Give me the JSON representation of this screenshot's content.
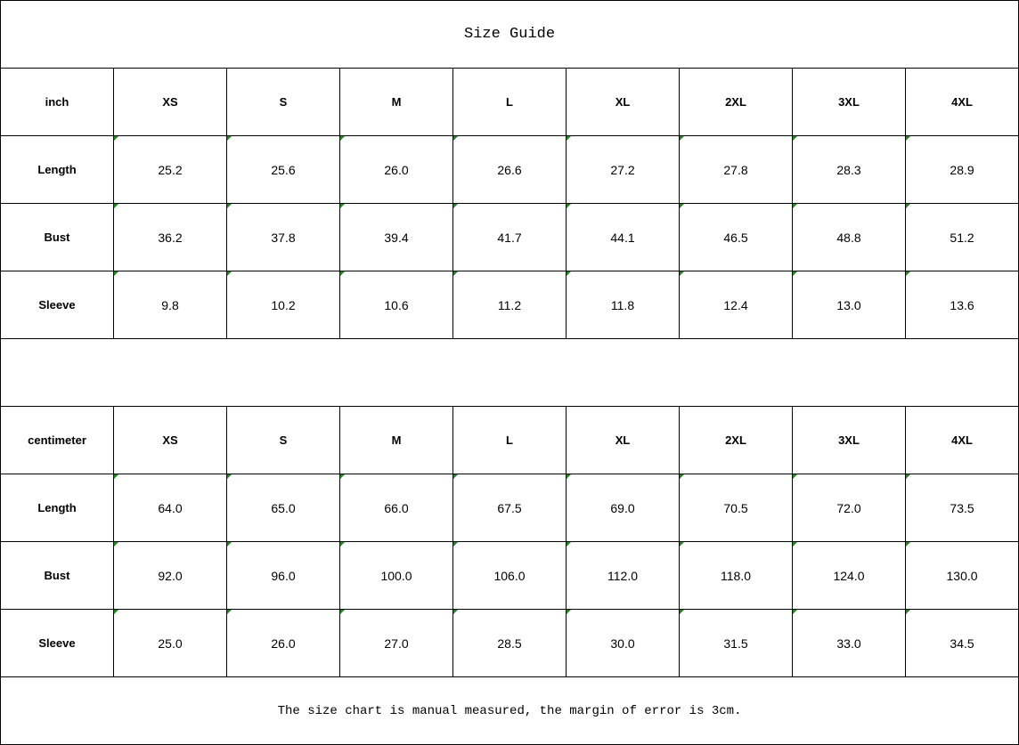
{
  "title": "Size Guide",
  "sizes": [
    "XS",
    "S",
    "M",
    "L",
    "XL",
    "2XL",
    "3XL",
    "4XL"
  ],
  "tables": [
    {
      "unit": "inch",
      "rows": [
        {
          "label": "Length",
          "values": [
            "25.2",
            "25.6",
            "26.0",
            "26.6",
            "27.2",
            "27.8",
            "28.3",
            "28.9"
          ]
        },
        {
          "label": "Bust",
          "values": [
            "36.2",
            "37.8",
            "39.4",
            "41.7",
            "44.1",
            "46.5",
            "48.8",
            "51.2"
          ]
        },
        {
          "label": "Sleeve",
          "values": [
            "9.8",
            "10.2",
            "10.6",
            "11.2",
            "11.8",
            "12.4",
            "13.0",
            "13.6"
          ]
        }
      ]
    },
    {
      "unit": "centimeter",
      "rows": [
        {
          "label": "Length",
          "values": [
            "64.0",
            "65.0",
            "66.0",
            "67.5",
            "69.0",
            "70.5",
            "72.0",
            "73.5"
          ]
        },
        {
          "label": "Bust",
          "values": [
            "92.0",
            "96.0",
            "100.0",
            "106.0",
            "112.0",
            "118.0",
            "124.0",
            "130.0"
          ]
        },
        {
          "label": "Sleeve",
          "values": [
            "25.0",
            "26.0",
            "27.0",
            "28.5",
            "30.0",
            "31.5",
            "33.0",
            "34.5"
          ]
        }
      ]
    }
  ],
  "note": "The size chart is manual measured, the margin of error is 3cm.",
  "colors": {
    "text_indicator": "#1a8a1a",
    "border": "#000000"
  }
}
